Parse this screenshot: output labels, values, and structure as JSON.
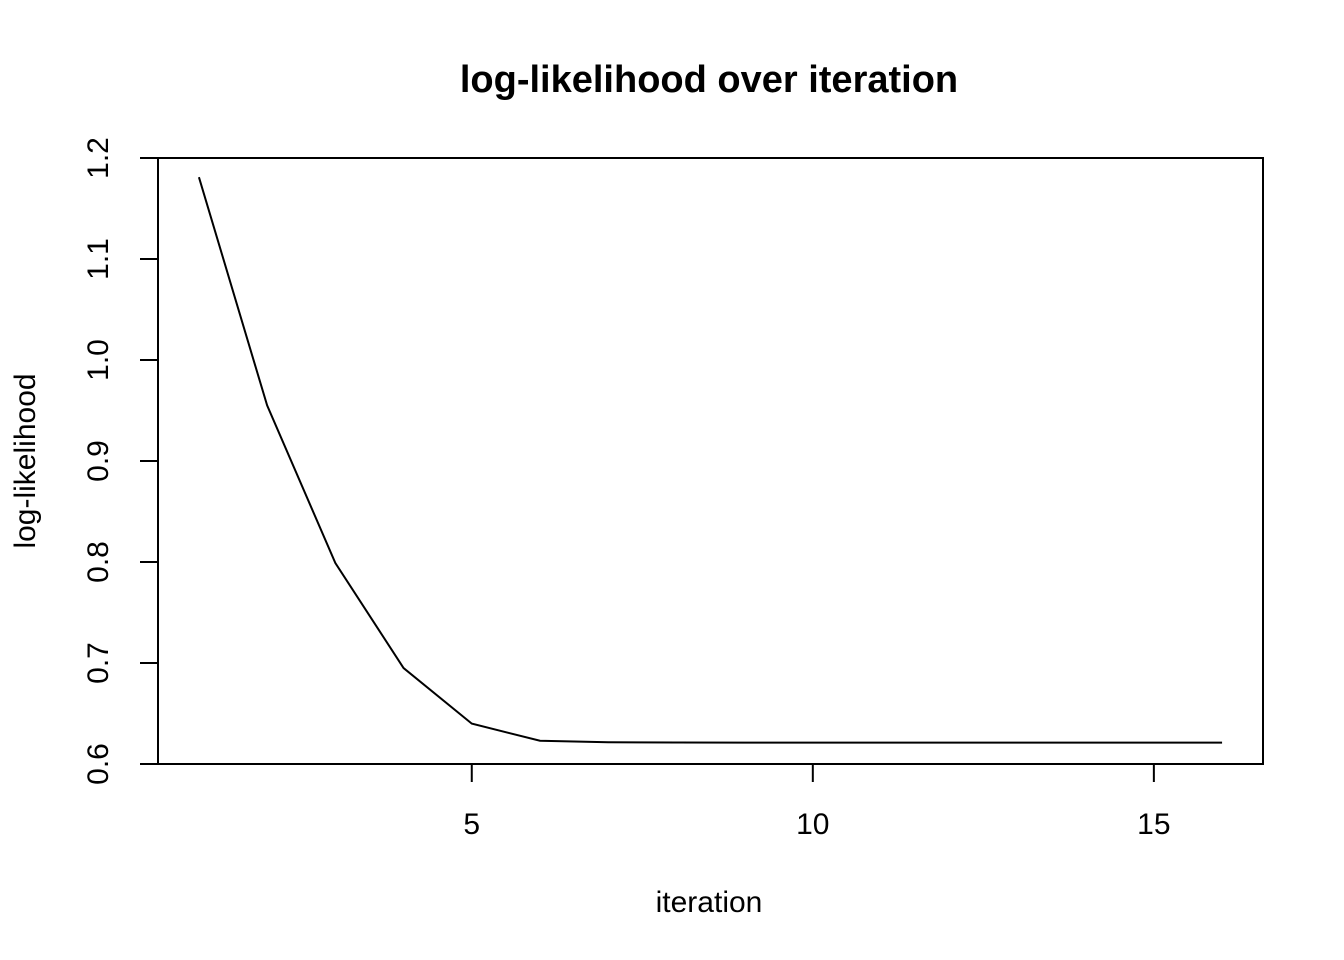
{
  "chart_data": {
    "type": "line",
    "title": "log-likelihood over iteration",
    "xlabel": "iteration",
    "ylabel": "log-likelihood",
    "x": [
      1,
      2,
      3,
      4,
      5,
      6,
      7,
      8,
      9,
      10,
      11,
      12,
      13,
      14,
      15,
      16
    ],
    "series": [
      {
        "name": "log-likelihood",
        "values": [
          1.181,
          0.955,
          0.799,
          0.695,
          0.64,
          0.623,
          0.6215,
          0.6213,
          0.6212,
          0.6212,
          0.6212,
          0.6212,
          0.6212,
          0.6212,
          0.6212,
          0.6212
        ],
        "color": "#000000"
      }
    ],
    "xlim": [
      0.4,
      16.6
    ],
    "ylim": [
      0.6,
      1.2
    ],
    "xticks": [
      5,
      10,
      15
    ],
    "xtick_labels": [
      "5",
      "10",
      "15"
    ],
    "yticks": [
      0.6,
      0.7,
      0.8,
      0.9,
      1.0,
      1.1,
      1.2
    ],
    "ytick_labels": [
      "0.6",
      "0.7",
      "0.8",
      "0.9",
      "1.0",
      "1.1",
      "1.2"
    ],
    "grid": false,
    "legend": "none"
  }
}
